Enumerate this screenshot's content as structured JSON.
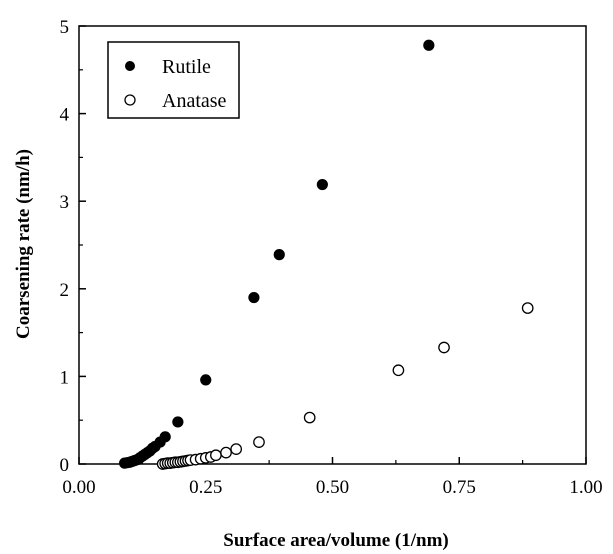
{
  "chart_data": {
    "type": "scatter",
    "title": "",
    "xlabel": "Surface area/volume (1/nm)",
    "ylabel": "Coarsening rate (nm/h)",
    "xlim": [
      0,
      1
    ],
    "ylim": [
      0,
      5
    ],
    "x_ticks": [
      "0.00",
      "0.25",
      "0.50",
      "0.75",
      "1.00"
    ],
    "y_ticks": [
      "0",
      "1",
      "2",
      "3",
      "4",
      "5"
    ],
    "grid": false,
    "legend_position": "top-left",
    "series": [
      {
        "name": "Rutile",
        "marker": "filled-circle",
        "color": "#000000",
        "points": [
          [
            0.09,
            0.01
          ],
          [
            0.095,
            0.015
          ],
          [
            0.1,
            0.02
          ],
          [
            0.105,
            0.03
          ],
          [
            0.11,
            0.04
          ],
          [
            0.115,
            0.05
          ],
          [
            0.12,
            0.07
          ],
          [
            0.125,
            0.09
          ],
          [
            0.13,
            0.11
          ],
          [
            0.135,
            0.13
          ],
          [
            0.14,
            0.15
          ],
          [
            0.145,
            0.18
          ],
          [
            0.15,
            0.2
          ],
          [
            0.16,
            0.25
          ],
          [
            0.17,
            0.31
          ],
          [
            0.195,
            0.48
          ],
          [
            0.25,
            0.96
          ],
          [
            0.345,
            1.9
          ],
          [
            0.395,
            2.39
          ],
          [
            0.48,
            3.19
          ],
          [
            0.69,
            4.78
          ]
        ]
      },
      {
        "name": "Anatase",
        "marker": "open-circle",
        "color": "#000000",
        "points": [
          [
            0.165,
            0.0
          ],
          [
            0.17,
            0.005
          ],
          [
            0.175,
            0.01
          ],
          [
            0.18,
            0.01
          ],
          [
            0.185,
            0.015
          ],
          [
            0.19,
            0.02
          ],
          [
            0.195,
            0.02
          ],
          [
            0.2,
            0.025
          ],
          [
            0.205,
            0.03
          ],
          [
            0.21,
            0.035
          ],
          [
            0.215,
            0.04
          ],
          [
            0.22,
            0.045
          ],
          [
            0.23,
            0.05
          ],
          [
            0.24,
            0.06
          ],
          [
            0.25,
            0.07
          ],
          [
            0.26,
            0.08
          ],
          [
            0.27,
            0.1
          ],
          [
            0.29,
            0.13
          ],
          [
            0.31,
            0.17
          ],
          [
            0.355,
            0.25
          ],
          [
            0.455,
            0.53
          ],
          [
            0.63,
            1.07
          ],
          [
            0.72,
            1.33
          ],
          [
            0.885,
            1.78
          ]
        ]
      }
    ]
  }
}
